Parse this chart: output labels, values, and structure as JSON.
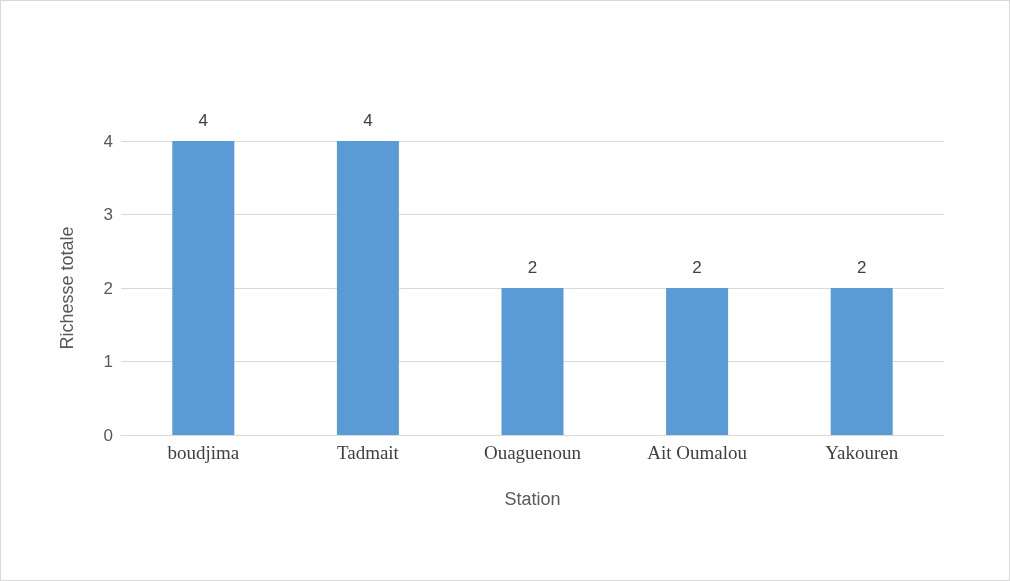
{
  "chart_data": {
    "type": "bar",
    "xlabel": "Station",
    "ylabel": "Richesse totale",
    "categories": [
      "boudjima",
      "Tadmait",
      "Ouaguenoun",
      "Ait Oumalou",
      "Yakouren"
    ],
    "values": [
      4,
      4,
      2,
      2,
      2
    ],
    "color": "#5b9bd5",
    "ylim": [
      0,
      4
    ],
    "yticks": [
      0,
      1,
      2,
      3,
      4
    ],
    "grid": "y",
    "data_labels": true
  }
}
